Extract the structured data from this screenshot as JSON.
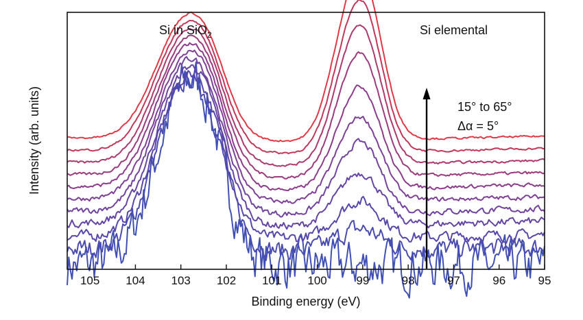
{
  "chart_data": {
    "type": "line",
    "title": "",
    "xlabel": "Binding energy (eV)",
    "ylabel": "Intensity (arb. units)",
    "x_axis_reversed": true,
    "xlim": [
      105.5,
      95
    ],
    "xticks": [
      105,
      104,
      103,
      102,
      101,
      100,
      99,
      98,
      97,
      96,
      95
    ],
    "yticks_shown": false,
    "grid": false,
    "legend": "none",
    "peak_labels": {
      "oxide_prefix": "Si in SiO",
      "oxide_subscript": "2",
      "elemental": "Si elemental"
    },
    "angle_annotation": {
      "range_text": "15° to 65°",
      "step_text": "Δα = 5°",
      "arrow_direction": "up"
    },
    "angles_deg": [
      15,
      20,
      25,
      30,
      35,
      40,
      45,
      50,
      55,
      60,
      65
    ],
    "series_colors": [
      "#3f4fb3",
      "#4a4bb0",
      "#5747aa",
      "#6444a4",
      "#71429e",
      "#7e3f97",
      "#8c3b8b",
      "#9b3a7d",
      "#ac386c",
      "#c13659",
      "#e03844"
    ],
    "series_style_note": "11 stacked XPS Si 2p spectra offset vertically; bottom (blue) noisiest, top (red) smoothest",
    "peak_positions_ev": {
      "oxide": 103.0,
      "elemental": 99.0
    },
    "series": [
      {
        "angle": 15,
        "offset": 0.0,
        "baseline": 0.0,
        "oxide_height": 0.82,
        "elemental_height": 0.0,
        "noise": 0.15
      },
      {
        "angle": 20,
        "offset": 0.06,
        "baseline": 0.02,
        "oxide_height": 0.75,
        "elemental_height": 0.08,
        "noise": 0.06
      },
      {
        "angle": 25,
        "offset": 0.11,
        "baseline": 0.02,
        "oxide_height": 0.72,
        "elemental_height": 0.14,
        "noise": 0.035
      },
      {
        "angle": 30,
        "offset": 0.16,
        "baseline": 0.03,
        "oxide_height": 0.7,
        "elemental_height": 0.2,
        "noise": 0.025
      },
      {
        "angle": 35,
        "offset": 0.21,
        "baseline": 0.03,
        "oxide_height": 0.68,
        "elemental_height": 0.27,
        "noise": 0.02
      },
      {
        "angle": 40,
        "offset": 0.26,
        "baseline": 0.03,
        "oxide_height": 0.66,
        "elemental_height": 0.32,
        "noise": 0.015
      },
      {
        "angle": 45,
        "offset": 0.31,
        "baseline": 0.03,
        "oxide_height": 0.64,
        "elemental_height": 0.39,
        "noise": 0.012
      },
      {
        "angle": 50,
        "offset": 0.36,
        "baseline": 0.03,
        "oxide_height": 0.62,
        "elemental_height": 0.47,
        "noise": 0.01
      },
      {
        "angle": 55,
        "offset": 0.41,
        "baseline": 0.03,
        "oxide_height": 0.6,
        "elemental_height": 0.53,
        "noise": 0.008
      },
      {
        "angle": 60,
        "offset": 0.46,
        "baseline": 0.03,
        "oxide_height": 0.58,
        "elemental_height": 0.58,
        "noise": 0.007
      },
      {
        "angle": 65,
        "offset": 0.51,
        "baseline": 0.03,
        "oxide_height": 0.56,
        "elemental_height": 0.64,
        "noise": 0.006
      }
    ]
  }
}
